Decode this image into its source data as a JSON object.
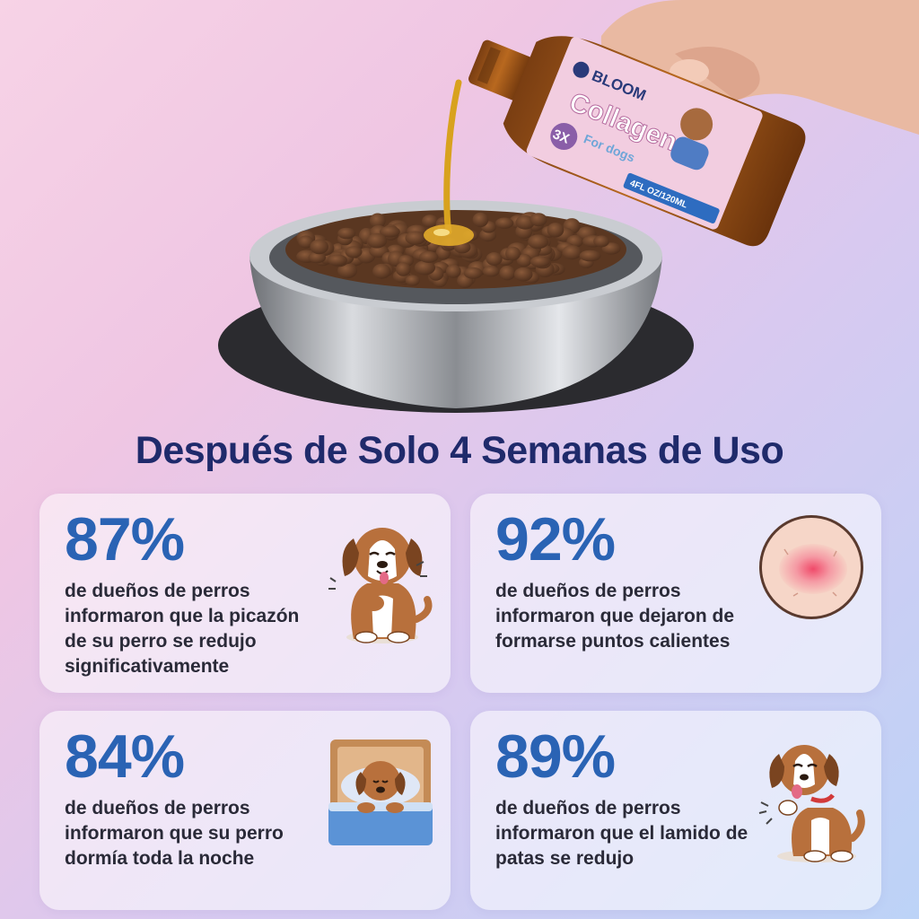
{
  "product": {
    "brand": "BLOOM",
    "name": "Collagen",
    "sub": "For dogs",
    "badge": "3X",
    "volume": "4FL OZ/120ML"
  },
  "headline": "Después de Solo 4 Semanas de Uso",
  "stats": [
    {
      "value": "87%",
      "text": "de dueños de perros informaron que la picazón de su perro se redujo significativamente",
      "icon": "scratching-dog-icon"
    },
    {
      "value": "92%",
      "text": "de dueños de perros informaron que dejaron de formarse puntos calientes",
      "icon": "skin-hot-spot-icon"
    },
    {
      "value": "84%",
      "text": "de dueños de perros informaron que su perro dormía toda la noche",
      "icon": "sleeping-dog-icon"
    },
    {
      "value": "89%",
      "text": "de dueños de perros informaron que el lamido de patas se redujo",
      "icon": "licking-dog-icon"
    }
  ],
  "colors": {
    "headline": "#1f2a6b",
    "percent": "#2a63b4",
    "text": "#2a2a38"
  }
}
